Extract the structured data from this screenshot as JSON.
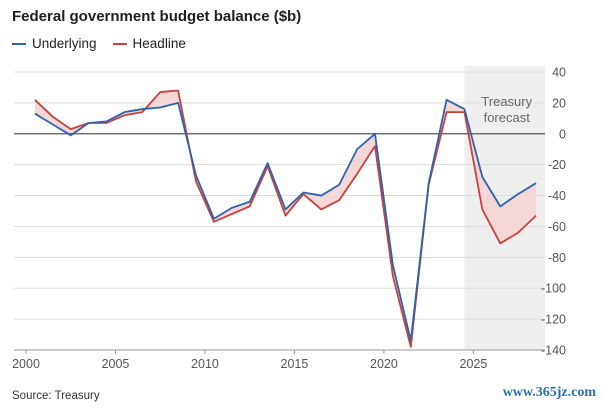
{
  "title": "Federal government budget balance ($b)",
  "source": "Source: Treasury",
  "watermark": "www.365jz.com",
  "colors": {
    "underlying": "#2f63ad",
    "headline": "#c8413d",
    "fill": "#f3d3d3",
    "forecast_bg": "#efefef",
    "grid": "#dddddd",
    "zero": "#555555"
  },
  "chart_data": {
    "type": "line",
    "title": "Federal government budget balance ($b)",
    "xlabel": "",
    "ylabel": "",
    "xlim": [
      2000,
      2029
    ],
    "ylim": [
      -140,
      40
    ],
    "xticks": [
      2000,
      2005,
      2010,
      2015,
      2020,
      2025
    ],
    "yticks": [
      40,
      20,
      0,
      -20,
      -40,
      -60,
      -80,
      -100,
      -120,
      -140
    ],
    "grid": true,
    "legend": "top-left",
    "annotation": {
      "text": [
        "Treasury",
        "forecast"
      ],
      "shaded_from": 2024.5
    },
    "x": [
      2000.5,
      2001.5,
      2002.5,
      2003.5,
      2004.5,
      2005.5,
      2006.5,
      2007.5,
      2008.5,
      2009.5,
      2010.5,
      2011.5,
      2012.5,
      2013.5,
      2014.5,
      2015.5,
      2016.5,
      2017.5,
      2018.5,
      2019.5,
      2020.5,
      2021.5,
      2022.5,
      2023.5,
      2024.5,
      2025.5,
      2026.5,
      2027.5,
      2028.5
    ],
    "series": [
      {
        "name": "Underlying",
        "values": [
          13,
          6,
          -1,
          7,
          8,
          14,
          16,
          17,
          20,
          -27,
          -55,
          -48,
          -44,
          -19,
          -49,
          -38,
          -40,
          -33,
          -10,
          0,
          -85,
          -134,
          -32,
          22,
          16,
          -28,
          -47,
          -39,
          -32
        ]
      },
      {
        "name": "Headline",
        "values": [
          22,
          11,
          3,
          7,
          7,
          12,
          14,
          27,
          28,
          -31,
          -57,
          -52,
          -47,
          -21,
          -53,
          -39,
          -49,
          -43,
          -26,
          -8,
          -92,
          -138,
          -33,
          14,
          14,
          -49,
          -71,
          -64,
          -53
        ]
      }
    ]
  }
}
